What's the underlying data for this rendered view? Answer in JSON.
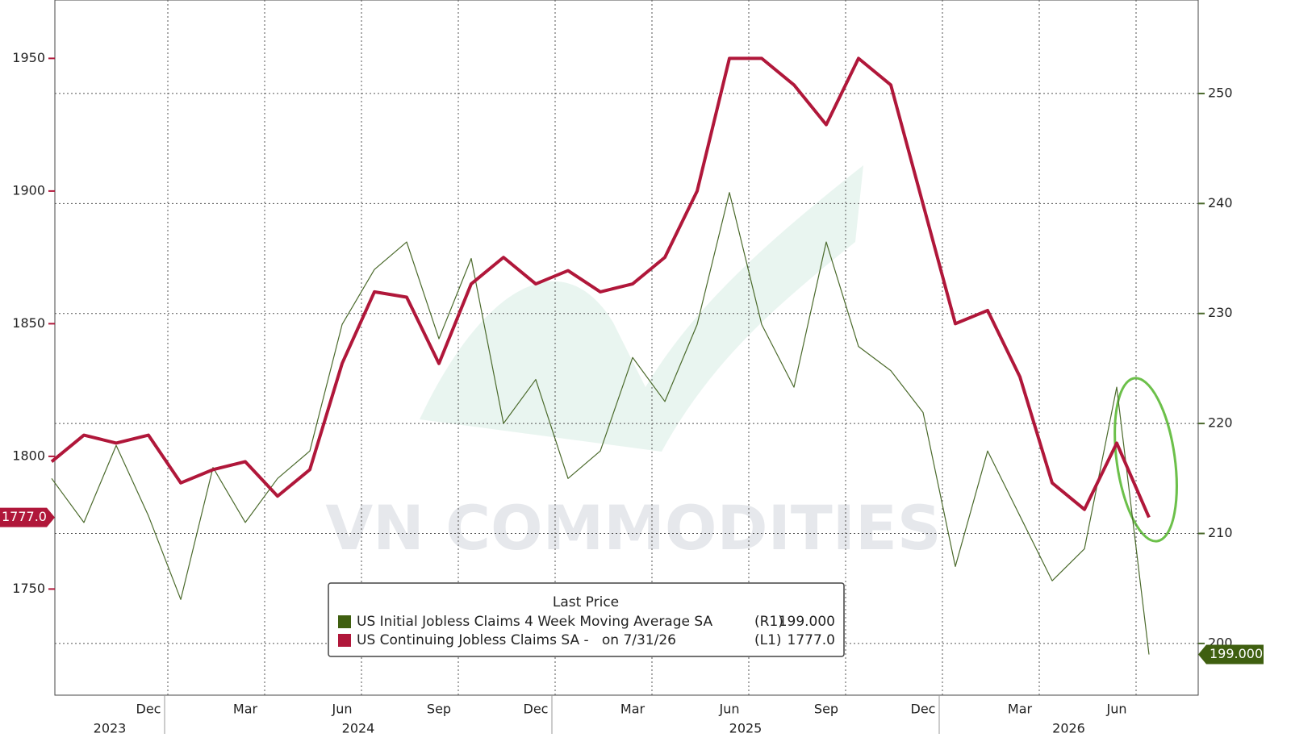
{
  "chart_data": {
    "type": "line",
    "watermark": "VN COMMODITIES",
    "x": [
      "2023-09",
      "2023-10",
      "2023-11",
      "2023-12",
      "2024-01",
      "2024-02",
      "2024-03",
      "2024-04",
      "2024-05",
      "2024-06",
      "2024-07",
      "2024-08",
      "2024-09",
      "2024-10",
      "2024-11",
      "2024-12",
      "2025-01",
      "2025-02",
      "2025-03",
      "2025-04",
      "2025-05",
      "2025-06",
      "2025-07",
      "2025-08",
      "2025-09",
      "2025-10",
      "2025-11",
      "2025-12",
      "2026-01",
      "2026-02",
      "2026-03",
      "2026-04",
      "2026-05",
      "2026-06",
      "2026-07"
    ],
    "xticks": [
      {
        "value": "2023-12",
        "label": "Dec"
      },
      {
        "value": "2024-03",
        "label": "Mar"
      },
      {
        "value": "2024-06",
        "label": "Jun"
      },
      {
        "value": "2024-09",
        "label": "Sep"
      },
      {
        "value": "2024-12",
        "label": "Dec"
      },
      {
        "value": "2025-03",
        "label": "Mar"
      },
      {
        "value": "2025-06",
        "label": "Jun"
      },
      {
        "value": "2025-09",
        "label": "Sep"
      },
      {
        "value": "2025-12",
        "label": "Dec"
      },
      {
        "value": "2026-03",
        "label": "Mar"
      },
      {
        "value": "2026-06",
        "label": "Jun"
      }
    ],
    "years": [
      "2023",
      "2024",
      "2025",
      "2026"
    ],
    "ylim": [
      1710,
      1972
    ],
    "yticks": [
      1750,
      1800,
      1850,
      1900,
      1950
    ],
    "y2lim": [
      195.3,
      258.5
    ],
    "y2ticks": [
      200,
      210,
      220,
      230,
      240,
      250
    ],
    "grid": true,
    "legend": {
      "title": "Last Price",
      "position": "bottom"
    },
    "series": [
      {
        "name": "US Initial Jobless Claims 4 Week Moving Average SA",
        "axis": "y2",
        "axis_tag": "(R1)",
        "color": "#4b6a2c",
        "legend_color": "#3f5f10",
        "last_label": "199.000",
        "values": [
          215,
          211,
          218,
          211.6,
          204,
          216,
          211,
          215,
          217.5,
          229,
          234,
          236.5,
          227.7,
          235,
          220,
          224,
          215,
          217.5,
          226,
          222,
          229,
          241,
          229,
          223.3,
          236.5,
          227,
          224.8,
          221,
          207,
          217.5,
          211.6,
          205.7,
          208.6,
          223.3,
          199
        ]
      },
      {
        "name": "US Continuing Jobless Claims SA -   on 7/31/26",
        "axis": "y",
        "axis_tag": "(L1)",
        "color": "#b0173a",
        "legend_color": "#b0173a",
        "last_label": "1777.0",
        "values": [
          1798,
          1808,
          1805,
          1808,
          1790,
          1795,
          1798,
          1785,
          1795,
          1835,
          1862,
          1860,
          1835,
          1865,
          1875,
          1865,
          1870,
          1862,
          1865,
          1875,
          1900,
          1950,
          1950,
          1940,
          1925,
          1950,
          1940,
          1895,
          1850,
          1855,
          1830,
          1790,
          1780,
          1805,
          1777
        ]
      }
    ]
  }
}
